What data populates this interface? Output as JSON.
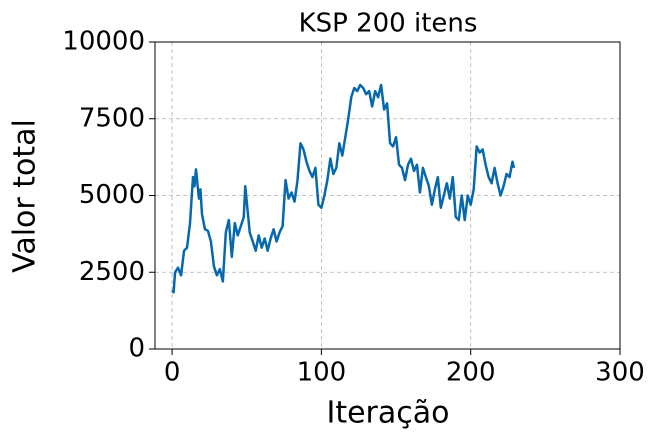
{
  "chart_data": {
    "type": "line",
    "title": "KSP 200 itens",
    "x_label": "Iteração",
    "y_label": "Valor total",
    "x": [
      0,
      1,
      2,
      4,
      6,
      8,
      10,
      12,
      14,
      15,
      16,
      18,
      19,
      20,
      22,
      24,
      26,
      28,
      30,
      32,
      34,
      36,
      38,
      40,
      42,
      44,
      46,
      48,
      49,
      50,
      52,
      54,
      56,
      58,
      60,
      62,
      64,
      66,
      68,
      70,
      72,
      74,
      76,
      78,
      80,
      82,
      84,
      86,
      88,
      90,
      92,
      94,
      96,
      98,
      100,
      102,
      104,
      106,
      108,
      110,
      112,
      114,
      116,
      118,
      120,
      122,
      124,
      126,
      128,
      130,
      132,
      134,
      136,
      138,
      140,
      142,
      144,
      146,
      148,
      150,
      152,
      154,
      156,
      158,
      160,
      162,
      164,
      166,
      168,
      170,
      172,
      174,
      176,
      178,
      180,
      182,
      184,
      186,
      188,
      190,
      192,
      194,
      196,
      198,
      200,
      202,
      204,
      206,
      208,
      210,
      212,
      214,
      216,
      218,
      220,
      222,
      224,
      226,
      228,
      229
    ],
    "series": [
      {
        "color": "#0868ac",
        "values": [
          1900,
          1850,
          2500,
          2650,
          2400,
          3200,
          3300,
          4100,
          5600,
          5300,
          5850,
          4900,
          5200,
          4400,
          3900,
          3850,
          3500,
          2700,
          2400,
          2600,
          2200,
          3800,
          4200,
          3000,
          4100,
          3700,
          4000,
          4300,
          5300,
          4800,
          3800,
          3500,
          3200,
          3700,
          3300,
          3600,
          3200,
          3600,
          3900,
          3500,
          3800,
          4000,
          5500,
          4900,
          5100,
          4800,
          5500,
          6700,
          6500,
          6100,
          5800,
          5600,
          5900,
          4700,
          4600,
          5000,
          5500,
          6200,
          5700,
          5900,
          6700,
          6300,
          6900,
          7500,
          8200,
          8500,
          8400,
          8600,
          8500,
          8300,
          8400,
          7900,
          8400,
          8200,
          8600,
          7800,
          8000,
          6700,
          6600,
          6900,
          6000,
          5900,
          5500,
          6000,
          6200,
          5800,
          6000,
          5100,
          5900,
          5600,
          5300,
          4700,
          5200,
          5600,
          4600,
          5000,
          5400,
          4900,
          5600,
          4300,
          4200,
          5000,
          4200,
          5000,
          4700,
          5200,
          6600,
          6400,
          6500,
          6000,
          5600,
          5400,
          5900,
          5400,
          5000,
          5300,
          5700,
          5600,
          6100,
          5900
        ]
      }
    ],
    "xlim": [
      -11.45,
      300
    ],
    "xticks": [
      0,
      100,
      200,
      300
    ],
    "ylim": [
      0,
      10000
    ],
    "yticks": [
      0,
      2500,
      5000,
      7500,
      10000
    ],
    "grid": true
  }
}
